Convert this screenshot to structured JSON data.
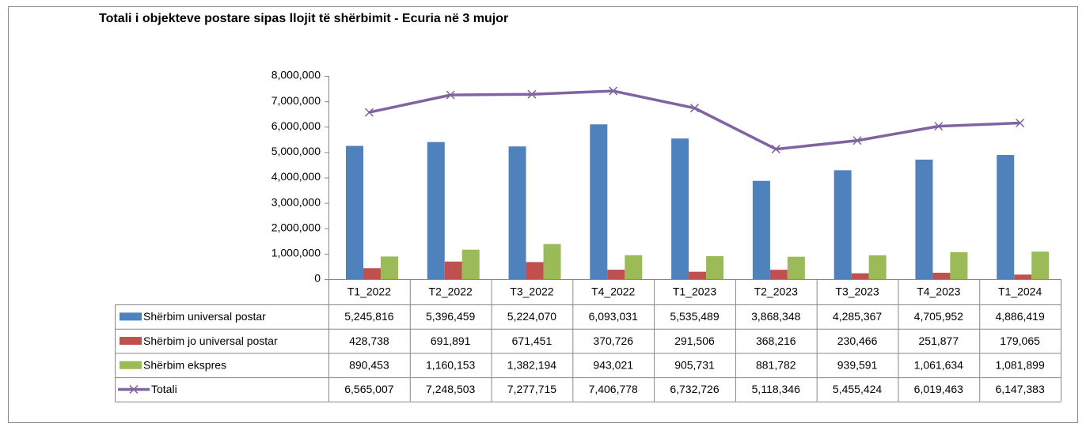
{
  "chart_data": {
    "type": "bar",
    "title": "Totali i objekteve postare sipas llojit të shërbimit - Ecuria në 3 mujor",
    "categories": [
      "T1_2022",
      "T2_2022",
      "T3_2022",
      "T4_2022",
      "T1_2023",
      "T2_2023",
      "T3_2023",
      "T4_2023",
      "T1_2024"
    ],
    "series": [
      {
        "name": "Shërbim universal postar",
        "color": "#4f81bd",
        "type": "bar",
        "values": [
          5245816,
          5396459,
          5224070,
          6093031,
          5535489,
          3868348,
          4285367,
          4705952,
          4886419
        ],
        "value_labels": [
          "5,245,816",
          "5,396,459",
          "5,224,070",
          "6,093,031",
          "5,535,489",
          "3,868,348",
          "4,285,367",
          "4,705,952",
          "4,886,419"
        ]
      },
      {
        "name": "Shërbim jo universal postar",
        "color": "#c0504d",
        "type": "bar",
        "values": [
          428738,
          691891,
          671451,
          370726,
          291506,
          368216,
          230466,
          251877,
          179065
        ],
        "value_labels": [
          "428,738",
          "691,891",
          "671,451",
          "370,726",
          "291,506",
          "368,216",
          "230,466",
          "251,877",
          "179,065"
        ]
      },
      {
        "name": "Shërbim ekspres",
        "color": "#9bbb59",
        "type": "bar",
        "values": [
          890453,
          1160153,
          1382194,
          943021,
          905731,
          881782,
          939591,
          1061634,
          1081899
        ],
        "value_labels": [
          "890,453",
          "1,160,153",
          "1,382,194",
          "943,021",
          "905,731",
          "881,782",
          "939,591",
          "1,061,634",
          "1,081,899"
        ]
      },
      {
        "name": "Totali",
        "color": "#8064a2",
        "type": "line",
        "values": [
          6565007,
          7248503,
          7277715,
          7406778,
          6732726,
          5118346,
          5455424,
          6019463,
          6147383
        ],
        "value_labels": [
          "6,565,007",
          "7,248,503",
          "7,277,715",
          "7,406,778",
          "6,732,726",
          "5,118,346",
          "5,455,424",
          "6,019,463",
          "6,147,383"
        ]
      }
    ],
    "ylim": [
      0,
      8000000
    ],
    "yticks": [
      0,
      {
        "value": 1000000,
        "label": "1,000,000"
      },
      {
        "value": 2000000,
        "label": "2,000,000"
      },
      {
        "value": 3000000,
        "label": "3,000,000"
      },
      {
        "value": 4000000,
        "label": "4,000,000"
      },
      {
        "value": 5000000,
        "label": "5,000,000"
      },
      {
        "value": 6000000,
        "label": "6,000,000"
      },
      {
        "value": 7000000,
        "label": "7,000,000"
      },
      {
        "value": 8000000,
        "label": "8,000,000"
      }
    ],
    "grid": false,
    "data_table": true
  }
}
